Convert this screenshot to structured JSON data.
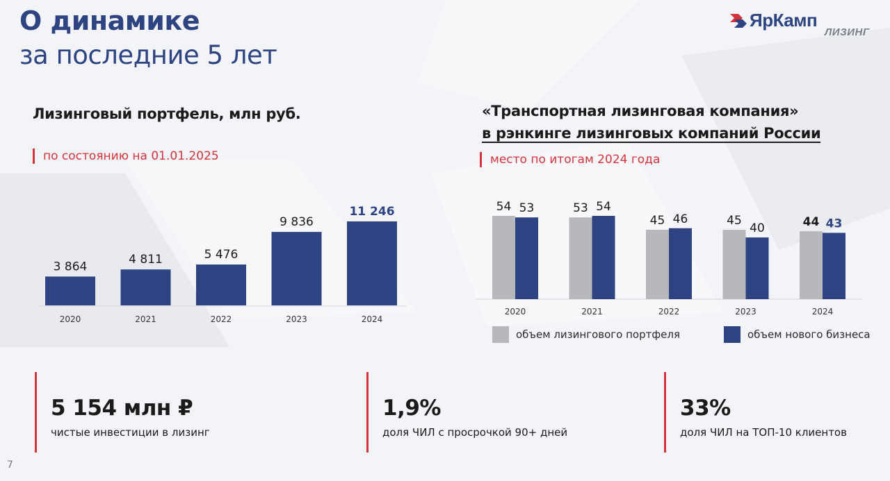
{
  "header": {
    "title_line1": "О динамике",
    "title_line2": "за последние 5 лет"
  },
  "logo": {
    "name": "ЯрКамп",
    "sub": "ЛИЗИНГ",
    "colors": [
      "#d6333c",
      "#2e4382"
    ]
  },
  "left_section": {
    "title": "Лизинговый портфель, млн руб.",
    "note": "по состоянию на 01.01.2025"
  },
  "right_section": {
    "title_line1": "«Транспортная лизинговая компания»",
    "title_line2": "в рэнкинге лизинговых компаний России",
    "note": "место по итогам 2024 года"
  },
  "chart_data": [
    {
      "type": "bar",
      "title": "Лизинговый портфель, млн руб.",
      "categories": [
        "2020",
        "2021",
        "2022",
        "2023",
        "2024"
      ],
      "values": [
        3864,
        4811,
        5476,
        9836,
        11246
      ],
      "labels": [
        "3 864",
        "4 811",
        "5 476",
        "9 836",
        "11 246"
      ],
      "highlight_index": 4,
      "ylim": [
        0,
        11246
      ],
      "color": "#2e4382",
      "grid": false
    },
    {
      "type": "bar",
      "title": "место по итогам 2024 года",
      "categories": [
        "2020",
        "2021",
        "2022",
        "2023",
        "2024"
      ],
      "series": [
        {
          "name": "объем лизингового портфеля",
          "values": [
            54,
            53,
            45,
            45,
            44
          ],
          "color": "#b7b8bc"
        },
        {
          "name": "объем нового бизнеса",
          "values": [
            53,
            54,
            46,
            40,
            43
          ],
          "color": "#2e4382"
        }
      ],
      "highlight_index": 4,
      "ylim": [
        0,
        54
      ],
      "legend": "bottom",
      "grid": false
    }
  ],
  "kpis": [
    {
      "value": "5 154 млн ₽",
      "label": "чистые инвестиции в лизинг"
    },
    {
      "value": "1,9%",
      "label": "доля ЧИЛ с просрочкой 90+ дней"
    },
    {
      "value": "33%",
      "label": "доля ЧИЛ на ТОП-10 клиентов"
    }
  ],
  "page_number": "7"
}
